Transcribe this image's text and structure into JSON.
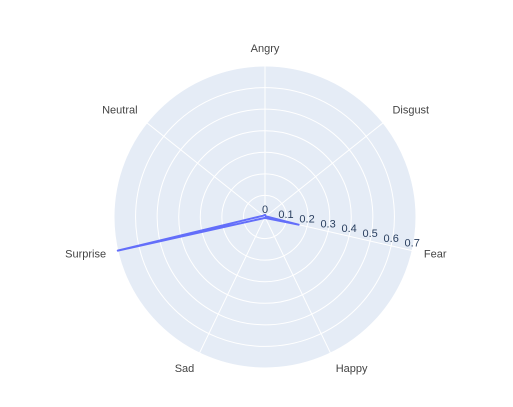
{
  "chart_data": {
    "type": "radar",
    "categories": [
      "Angry",
      "Disgust",
      "Fear",
      "Happy",
      "Sad",
      "Surprise",
      "Neutral"
    ],
    "series": [
      {
        "values": [
          0.01,
          0.005,
          0.16,
          0.005,
          0.005,
          0.7,
          0.01
        ],
        "color": "#636efa"
      }
    ],
    "radial_ticks": [
      "0",
      "0.1",
      "0.2",
      "0.3",
      "0.4",
      "0.5",
      "0.6",
      "0.7"
    ],
    "radial_range": [
      0,
      0.7
    ],
    "grid": true,
    "legend": "none"
  },
  "style": {
    "polar_background": "#e5ecf6",
    "gridline_color": "#ffffff",
    "tick_text_color": "#2a3f5f",
    "label_text_color": "#444444"
  }
}
